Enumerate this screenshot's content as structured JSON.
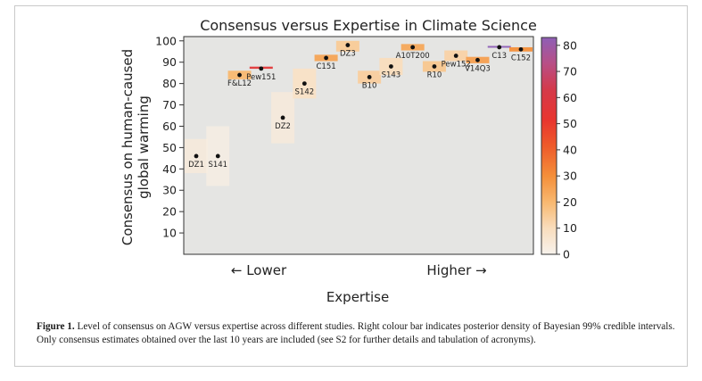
{
  "chart_data": {
    "type": "scatter",
    "title": "Consensus versus Expertise in Climate Science",
    "xlabel": "Expertise",
    "ylabel_lines": [
      "Consensus on human-caused",
      "global warming"
    ],
    "x_annotation_low": "← Lower",
    "x_annotation_high": "Higher →",
    "ylim": [
      0,
      102
    ],
    "yticks": [
      10,
      20,
      30,
      40,
      50,
      60,
      70,
      80,
      90,
      100
    ],
    "grid": false,
    "colorbar": {
      "min": 0,
      "max": 83,
      "ticks": [
        0,
        10,
        20,
        30,
        40,
        50,
        60,
        70,
        80
      ],
      "description": "posterior density of Bayesian 99% credible intervals"
    },
    "points": [
      {
        "label": "DZ1",
        "x": 1,
        "y": 46,
        "lo": 38,
        "hi": 54,
        "density": 4,
        "label_pos": "below"
      },
      {
        "label": "S141",
        "x": 2,
        "y": 46,
        "lo": 32,
        "hi": 60,
        "density": 2,
        "label_pos": "below"
      },
      {
        "label": "F&L12",
        "x": 3,
        "y": 84,
        "lo": 82,
        "hi": 86,
        "density": 20,
        "label_pos": "below"
      },
      {
        "label": "Pew151",
        "x": 4,
        "y": 87,
        "lo": 86.5,
        "hi": 87.5,
        "density": 55,
        "label_pos": "below"
      },
      {
        "label": "DZ2",
        "x": 5,
        "y": 64,
        "lo": 52,
        "hi": 76,
        "density": 4,
        "label_pos": "below"
      },
      {
        "label": "S142",
        "x": 6,
        "y": 80,
        "lo": 73,
        "hi": 87,
        "density": 8,
        "label_pos": "below"
      },
      {
        "label": "C151",
        "x": 7,
        "y": 92,
        "lo": 90.5,
        "hi": 93.5,
        "density": 25,
        "label_pos": "below"
      },
      {
        "label": "DZ3",
        "x": 8,
        "y": 98,
        "lo": 95,
        "hi": 100,
        "density": 15,
        "label_pos": "below"
      },
      {
        "label": "B10",
        "x": 9,
        "y": 83,
        "lo": 80,
        "hi": 86,
        "density": 14,
        "label_pos": "below"
      },
      {
        "label": "S143",
        "x": 10,
        "y": 88,
        "lo": 84,
        "hi": 92,
        "density": 10,
        "label_pos": "below"
      },
      {
        "label": "A10T200",
        "x": 11,
        "y": 97,
        "lo": 95.5,
        "hi": 98.5,
        "density": 24,
        "label_pos": "below"
      },
      {
        "label": "R10",
        "x": 12,
        "y": 88,
        "lo": 85.5,
        "hi": 90.5,
        "density": 16,
        "label_pos": "below"
      },
      {
        "label": "Pew152",
        "x": 13,
        "y": 93,
        "lo": 90.5,
        "hi": 95.5,
        "density": 13,
        "label_pos": "below"
      },
      {
        "label": "V14Q3",
        "x": 14,
        "y": 91,
        "lo": 89.5,
        "hi": 92.5,
        "density": 26,
        "label_pos": "below"
      },
      {
        "label": "C13",
        "x": 15,
        "y": 97,
        "lo": 96.8,
        "hi": 97.2,
        "density": 83,
        "label_pos": "below"
      },
      {
        "label": "C152",
        "x": 16,
        "y": 96,
        "lo": 95,
        "hi": 97,
        "density": 30,
        "label_pos": "below"
      }
    ]
  },
  "caption": {
    "label": "Figure 1.",
    "text": "Level of consensus on AGW versus expertise across different studies. Right colour bar indicates posterior density of Bayesian 99% credible intervals. Only consensus estimates obtained over the last 10 years are included (see S2 for further details and tabulation of acronyms)."
  }
}
